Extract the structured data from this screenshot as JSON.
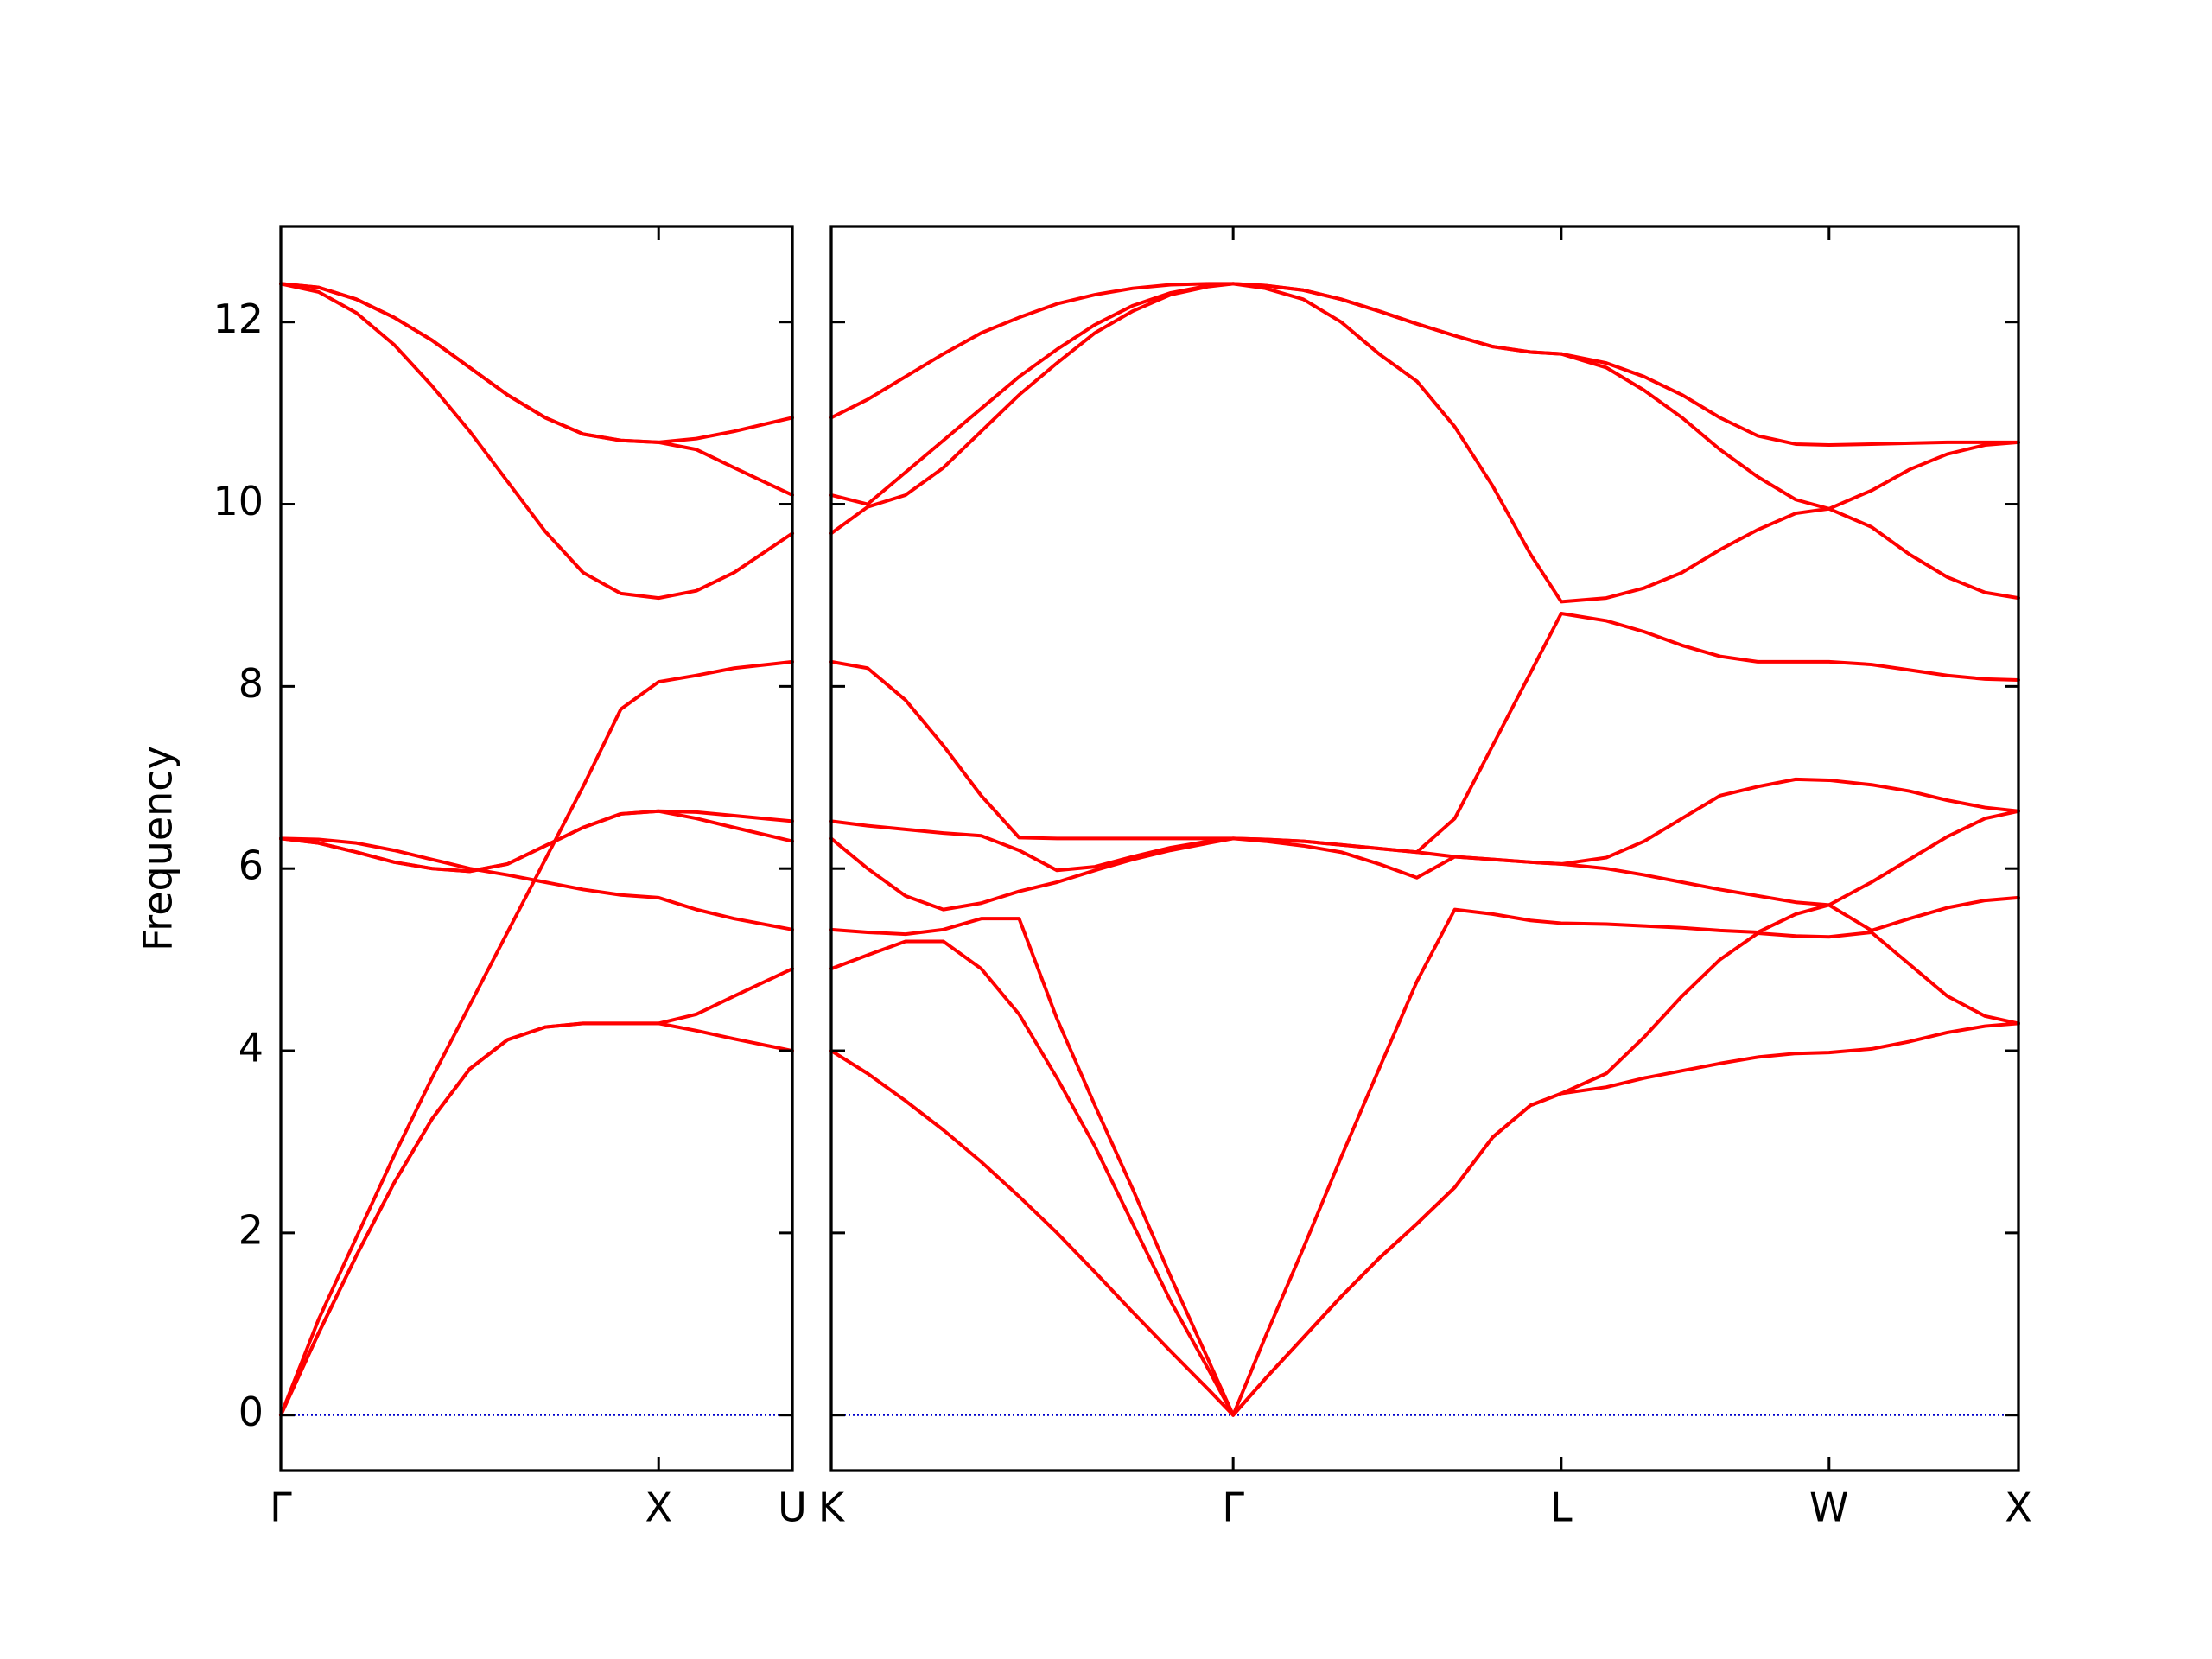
{
  "chart_data": [
    {
      "type": "line",
      "ylabel": "Frequency",
      "color": "#ff0000",
      "x": [
        0,
        0.1,
        0.2,
        0.3,
        0.4,
        0.5,
        0.6,
        0.7,
        0.8,
        0.9,
        1.0,
        1.1,
        1.2,
        1.354
      ],
      "xlim": [
        0,
        1.354
      ],
      "xticks": [
        {
          "value": 0,
          "label": "Γ"
        },
        {
          "value": 1.0,
          "label": "X"
        },
        {
          "value": 1.354,
          "label": "U"
        }
      ],
      "ylim": [
        -0.61,
        13.05
      ],
      "yticks": [
        0,
        2,
        4,
        6,
        8,
        10,
        12
      ],
      "zero_line": {
        "value": 0,
        "color": "#0000cc"
      },
      "series": [
        {
          "values": [
            0,
            0.9,
            1.75,
            2.55,
            3.25,
            3.8,
            4.12,
            4.26,
            4.3,
            4.3,
            4.3,
            4.22,
            4.13,
            4.0
          ]
        },
        {
          "values": [
            0,
            0.9,
            1.75,
            2.55,
            3.25,
            3.8,
            4.12,
            4.26,
            4.3,
            4.3,
            4.3,
            4.4,
            4.6,
            4.9
          ]
        },
        {
          "values": [
            0,
            1.05,
            1.95,
            2.85,
            3.7,
            4.5,
            5.3,
            6.1,
            6.9,
            7.75,
            8.05,
            8.12,
            8.2,
            8.27
          ]
        },
        {
          "values": [
            6.33,
            6.28,
            6.18,
            6.07,
            6.0,
            5.97,
            6.05,
            6.25,
            6.45,
            6.6,
            6.63,
            6.62,
            6.58,
            6.52
          ]
        },
        {
          "values": [
            6.33,
            6.28,
            6.18,
            6.07,
            6.0,
            5.97,
            6.05,
            6.25,
            6.45,
            6.6,
            6.63,
            6.55,
            6.45,
            6.3
          ]
        },
        {
          "values": [
            6.33,
            6.32,
            6.28,
            6.2,
            6.1,
            6.0,
            5.93,
            5.85,
            5.77,
            5.71,
            5.68,
            5.55,
            5.45,
            5.33
          ]
        },
        {
          "values": [
            12.42,
            12.38,
            12.25,
            12.05,
            11.8,
            11.5,
            11.2,
            10.95,
            10.77,
            10.7,
            10.68,
            10.72,
            10.8,
            10.95
          ]
        },
        {
          "values": [
            12.42,
            12.38,
            12.25,
            12.05,
            11.8,
            11.5,
            11.2,
            10.95,
            10.77,
            10.7,
            10.68,
            10.6,
            10.4,
            10.1
          ]
        },
        {
          "values": [
            12.42,
            12.33,
            12.1,
            11.75,
            11.3,
            10.8,
            10.25,
            9.7,
            9.25,
            9.02,
            8.97,
            9.05,
            9.25,
            9.68
          ]
        }
      ]
    },
    {
      "type": "line",
      "color": "#ff0000",
      "ytick_labels": false,
      "x": [
        1.354,
        1.45,
        1.55,
        1.65,
        1.75,
        1.85,
        1.95,
        2.05,
        2.15,
        2.25,
        2.35,
        2.415,
        2.5,
        2.6,
        2.7,
        2.8,
        2.9,
        3.0,
        3.1,
        3.2,
        3.281,
        3.4,
        3.5,
        3.6,
        3.7,
        3.8,
        3.9,
        3.988,
        4.1,
        4.2,
        4.3,
        4.4,
        4.488
      ],
      "xlim": [
        1.354,
        4.488
      ],
      "xticks": [
        {
          "value": 1.354,
          "label": "K"
        },
        {
          "value": 2.415,
          "label": "Γ"
        },
        {
          "value": 3.281,
          "label": "L"
        },
        {
          "value": 3.988,
          "label": "W"
        },
        {
          "value": 4.488,
          "label": "X"
        }
      ],
      "ylim": [
        -0.61,
        13.05
      ],
      "yticks": [
        0,
        2,
        4,
        6,
        8,
        10,
        12
      ],
      "zero_line": {
        "value": 0,
        "color": "#0000cc"
      },
      "series": [
        {
          "values": [
            4.0,
            3.75,
            3.45,
            3.13,
            2.78,
            2.4,
            2.0,
            1.57,
            1.13,
            0.7,
            0.28,
            0,
            0.4,
            0.85,
            1.3,
            1.72,
            2.1,
            2.5,
            3.05,
            3.4,
            3.53,
            3.6,
            3.7,
            3.78,
            3.86,
            3.93,
            3.97,
            3.98,
            4.02,
            4.1,
            4.2,
            4.27,
            4.3
          ]
        },
        {
          "values": [
            4.9,
            5.05,
            5.2,
            5.2,
            4.9,
            4.4,
            3.7,
            2.95,
            2.1,
            1.25,
            0.5,
            0,
            0.4,
            0.85,
            1.3,
            1.72,
            2.1,
            2.5,
            3.05,
            3.4,
            3.53,
            3.75,
            4.15,
            4.6,
            5.0,
            5.29,
            5.26,
            5.25,
            5.3,
            4.95,
            4.6,
            4.38,
            4.3
          ]
        },
        {
          "values": [
            5.33,
            5.3,
            5.28,
            5.33,
            5.45,
            5.45,
            4.35,
            3.4,
            2.48,
            1.52,
            0.6,
            0,
            0.86,
            1.83,
            2.83,
            3.8,
            4.76,
            5.55,
            5.5,
            5.43,
            5.4,
            5.39,
            5.37,
            5.35,
            5.32,
            5.3,
            5.5,
            5.6,
            5.32,
            5.45,
            5.57,
            5.65,
            5.68
          ]
        },
        {
          "values": [
            6.33,
            6.0,
            5.7,
            5.55,
            5.62,
            5.75,
            5.85,
            5.98,
            6.1,
            6.2,
            6.28,
            6.33,
            6.3,
            6.25,
            6.18,
            6.05,
            5.9,
            6.13,
            6.1,
            6.07,
            6.05,
            6.0,
            5.93,
            5.85,
            5.77,
            5.7,
            5.63,
            5.6,
            5.85,
            6.1,
            6.35,
            6.55,
            6.63
          ]
        },
        {
          "values": [
            6.52,
            6.47,
            6.43,
            6.39,
            6.36,
            6.2,
            5.98,
            6.02,
            6.13,
            6.23,
            6.3,
            6.33,
            6.32,
            6.3,
            6.26,
            6.22,
            6.18,
            6.13,
            6.1,
            6.07,
            6.05,
            6.12,
            6.3,
            6.55,
            6.8,
            6.9,
            6.98,
            6.97,
            6.92,
            6.85,
            6.75,
            6.67,
            6.63
          ]
        },
        {
          "values": [
            8.27,
            8.2,
            7.85,
            7.35,
            6.8,
            6.34,
            6.33,
            6.33,
            6.33,
            6.33,
            6.33,
            6.33,
            6.32,
            6.3,
            6.26,
            6.22,
            6.18,
            6.55,
            7.35,
            8.15,
            8.8,
            8.72,
            8.6,
            8.45,
            8.33,
            8.27,
            8.27,
            8.27,
            8.24,
            8.18,
            8.12,
            8.08,
            8.07
          ]
        },
        {
          "values": [
            9.68,
            9.97,
            10.1,
            10.4,
            10.8,
            11.2,
            11.55,
            11.88,
            12.12,
            12.3,
            12.39,
            12.42,
            12.37,
            12.25,
            12.0,
            11.65,
            11.35,
            10.85,
            10.2,
            9.45,
            8.93,
            8.97,
            9.08,
            9.25,
            9.5,
            9.72,
            9.9,
            9.95,
            9.75,
            9.45,
            9.2,
            9.03,
            8.97
          ]
        },
        {
          "values": [
            10.1,
            10.0,
            10.35,
            10.7,
            11.05,
            11.4,
            11.7,
            11.97,
            12.18,
            12.32,
            12.4,
            12.42,
            12.4,
            12.35,
            12.25,
            12.12,
            11.98,
            11.85,
            11.73,
            11.67,
            11.65,
            11.5,
            11.25,
            10.95,
            10.6,
            10.3,
            10.05,
            9.95,
            10.15,
            10.38,
            10.55,
            10.65,
            10.68
          ]
        },
        {
          "values": [
            10.95,
            11.15,
            11.4,
            11.65,
            11.88,
            12.05,
            12.2,
            12.3,
            12.37,
            12.41,
            12.42,
            12.42,
            12.4,
            12.35,
            12.25,
            12.12,
            11.98,
            11.85,
            11.73,
            11.67,
            11.65,
            11.55,
            11.4,
            11.2,
            10.95,
            10.75,
            10.66,
            10.65,
            10.66,
            10.67,
            10.68,
            10.68,
            10.68
          ]
        }
      ]
    }
  ]
}
